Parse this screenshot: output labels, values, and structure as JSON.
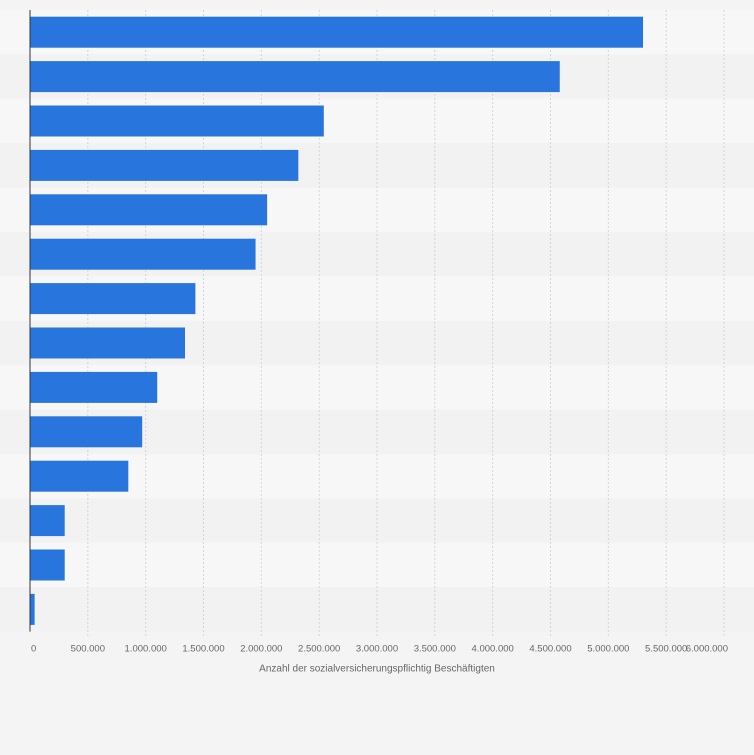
{
  "chart_data": {
    "type": "bar",
    "orientation": "horizontal",
    "categories": [
      "",
      "",
      "",
      "",
      "",
      "",
      "",
      "",
      "",
      "",
      "",
      "",
      "",
      ""
    ],
    "values": [
      5300000,
      4580000,
      2540000,
      2320000,
      2050000,
      1950000,
      1430000,
      1340000,
      1100000,
      970000,
      850000,
      300000,
      300000,
      40000
    ],
    "xlabel": "Anzahl der sozialversicherungspflichtig Beschäftigten",
    "ylabel": "",
    "xlim": [
      0,
      6000000
    ],
    "xticks": [
      0,
      500000,
      1000000,
      1500000,
      2000000,
      2500000,
      3000000,
      3500000,
      4000000,
      4500000,
      5000000,
      5500000,
      6000000
    ],
    "xtick_labels": [
      "0",
      "500.000",
      "1.000.000",
      "1.500.000",
      "2.000.000",
      "2.500.000",
      "3.000.000",
      "3.500.000",
      "4.000.000",
      "4.500.000",
      "5.000.000",
      "5.500.000",
      "6.000.000"
    ],
    "grid": true,
    "colors": {
      "bar": "#2876dd",
      "row_light": "#f7f7f7",
      "row_dark": "#f2f2f2",
      "grid": "#d4d4d4",
      "axis": "#333333",
      "text": "#666666"
    }
  }
}
